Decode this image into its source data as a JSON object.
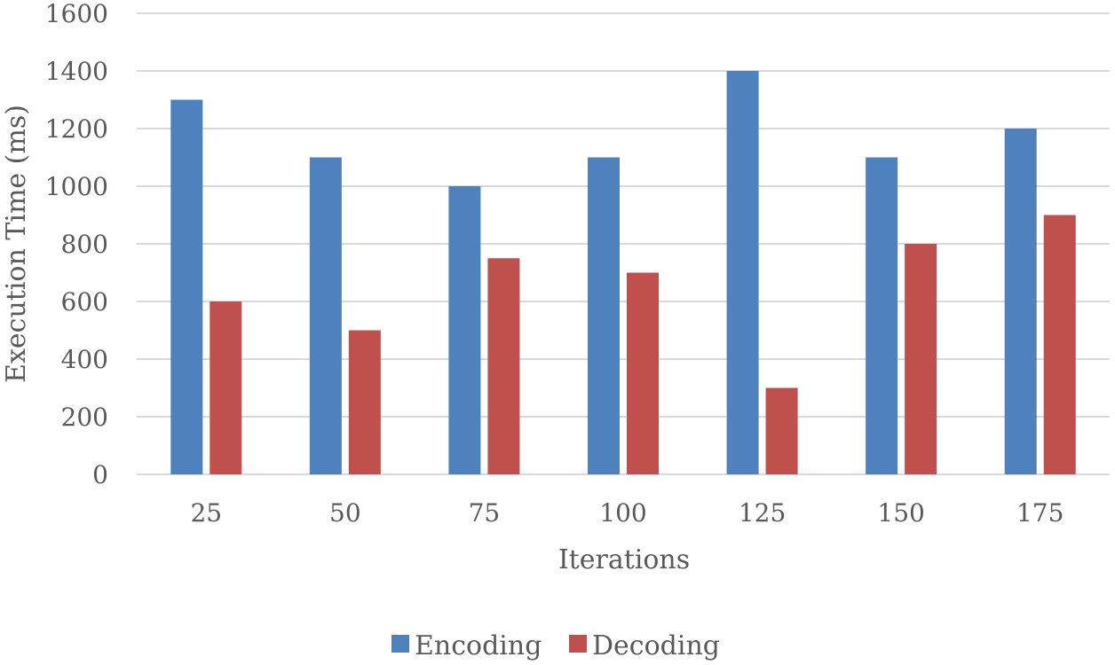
{
  "chart_data": {
    "type": "bar",
    "title": "",
    "xlabel": "Iterations",
    "ylabel": "Execution Time (ms)",
    "categories": [
      "25",
      "50",
      "75",
      "100",
      "125",
      "150",
      "175"
    ],
    "series": [
      {
        "name": "Encoding",
        "color": "#4f81bd",
        "values": [
          1300,
          1100,
          1000,
          1100,
          1400,
          1100,
          1200
        ]
      },
      {
        "name": "Decoding",
        "color": "#c0504d",
        "values": [
          600,
          500,
          750,
          700,
          300,
          800,
          900
        ]
      }
    ],
    "ylim": [
      0,
      1600
    ],
    "yticks": [
      0,
      200,
      400,
      600,
      800,
      1000,
      1200,
      1400,
      1600
    ],
    "grid": true,
    "gridColor": "#d9d9d9",
    "legend": "bottom-center"
  }
}
